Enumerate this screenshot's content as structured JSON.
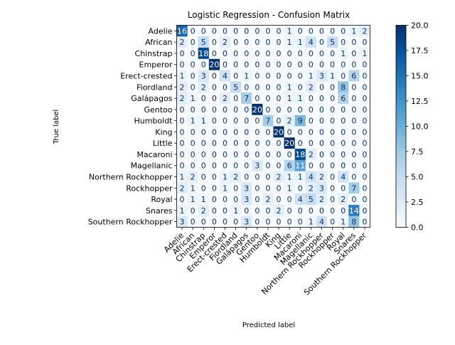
{
  "chart_data": {
    "type": "heatmap",
    "title": "Logistic Regression - Confusion Matrix",
    "xlabel": "Predicted label",
    "ylabel": "True label",
    "labels": [
      "Adelie",
      "African",
      "Chinstrap",
      "Emperor",
      "Erect-crested",
      "Fiordland",
      "Galápagos",
      "Gentoo",
      "Humboldt",
      "King",
      "Little",
      "Macaroni",
      "Magellanic",
      "Northern Rockhopper",
      "Rockhopper",
      "Royal",
      "Snares",
      "Southern Rockhopper"
    ],
    "matrix": [
      [
        16,
        0,
        0,
        0,
        0,
        0,
        0,
        0,
        0,
        0,
        1,
        0,
        0,
        0,
        0,
        0,
        1,
        2
      ],
      [
        2,
        0,
        5,
        0,
        2,
        0,
        0,
        0,
        0,
        0,
        1,
        1,
        4,
        0,
        5,
        0,
        0,
        0
      ],
      [
        0,
        0,
        18,
        0,
        0,
        0,
        0,
        0,
        0,
        0,
        0,
        0,
        0,
        0,
        0,
        1,
        0,
        1
      ],
      [
        0,
        0,
        0,
        20,
        0,
        0,
        0,
        0,
        0,
        0,
        0,
        0,
        0,
        0,
        0,
        0,
        0,
        0
      ],
      [
        1,
        0,
        3,
        0,
        4,
        0,
        1,
        0,
        0,
        0,
        0,
        0,
        1,
        3,
        1,
        0,
        6,
        0
      ],
      [
        2,
        0,
        2,
        0,
        0,
        5,
        0,
        0,
        0,
        0,
        1,
        0,
        2,
        0,
        0,
        8,
        0,
        0
      ],
      [
        2,
        1,
        0,
        0,
        2,
        0,
        7,
        0,
        0,
        0,
        1,
        1,
        0,
        0,
        0,
        6,
        0,
        0
      ],
      [
        0,
        0,
        0,
        0,
        0,
        0,
        0,
        20,
        0,
        0,
        0,
        0,
        0,
        0,
        0,
        0,
        0,
        0
      ],
      [
        0,
        1,
        1,
        0,
        0,
        0,
        0,
        0,
        7,
        0,
        2,
        9,
        0,
        0,
        0,
        0,
        0,
        0
      ],
      [
        0,
        0,
        0,
        0,
        0,
        0,
        0,
        0,
        0,
        20,
        0,
        0,
        0,
        0,
        0,
        0,
        0,
        0
      ],
      [
        0,
        0,
        0,
        0,
        0,
        0,
        0,
        0,
        0,
        0,
        20,
        0,
        0,
        0,
        0,
        0,
        0,
        0
      ],
      [
        0,
        0,
        0,
        0,
        0,
        0,
        0,
        0,
        0,
        0,
        0,
        18,
        2,
        0,
        0,
        0,
        0,
        0
      ],
      [
        0,
        0,
        0,
        0,
        0,
        0,
        0,
        3,
        0,
        0,
        6,
        11,
        0,
        0,
        0,
        0,
        0,
        0
      ],
      [
        1,
        2,
        0,
        0,
        1,
        2,
        0,
        0,
        0,
        2,
        1,
        1,
        4,
        2,
        0,
        4,
        0,
        0
      ],
      [
        2,
        1,
        0,
        0,
        1,
        0,
        3,
        0,
        0,
        0,
        1,
        0,
        2,
        3,
        0,
        0,
        7,
        0
      ],
      [
        0,
        1,
        1,
        0,
        0,
        0,
        3,
        0,
        2,
        0,
        0,
        4,
        5,
        2,
        0,
        2,
        0,
        0
      ],
      [
        1,
        0,
        2,
        0,
        0,
        1,
        0,
        0,
        0,
        2,
        0,
        0,
        0,
        0,
        0,
        0,
        14,
        0
      ],
      [
        3,
        0,
        0,
        0,
        0,
        0,
        3,
        0,
        0,
        0,
        0,
        0,
        1,
        4,
        0,
        1,
        8,
        0
      ]
    ],
    "vmin": 0,
    "vmax": 20,
    "colorbar_ticks": [
      "0.0",
      "2.5",
      "5.0",
      "7.5",
      "10.0",
      "12.5",
      "15.0",
      "17.5",
      "20.0"
    ],
    "colormap": "Blues",
    "colors": {
      "low": "#f7fbff",
      "high": "#08306b",
      "text_dark": "#08306b",
      "text_light": "#ffffff"
    }
  }
}
